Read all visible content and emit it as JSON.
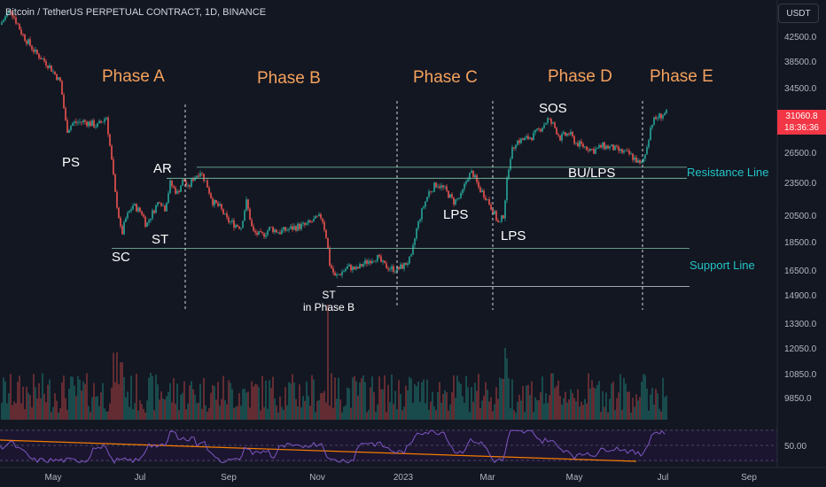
{
  "header": {
    "title": "Bitcoin / TetherUS PERPETUAL CONTRACT, 1D, BINANCE",
    "currency": "USDT"
  },
  "price_tag": {
    "price": "31060.8",
    "countdown": "18:36:36"
  },
  "colors": {
    "up": "#26a69a",
    "down": "#ef5350",
    "phase": "#f5a25d",
    "level_line": "#7fc8a9",
    "rsi": "#7e57c2",
    "trend": "#f57c00"
  },
  "phases": [
    "Phase A",
    "Phase B",
    "Phase C",
    "Phase D",
    "Phase E"
  ],
  "events": {
    "ps": "PS",
    "sc": "SC",
    "ar": "AR",
    "st_a": "ST",
    "st_b": "ST",
    "st_b_sub": "in Phase B",
    "lps_c1": "LPS",
    "lps_c2": "LPS",
    "sos": "SOS",
    "bu_lps": "BU/LPS"
  },
  "levels": {
    "resistance": "Resistance Line",
    "support": "Support Line"
  },
  "chart_data": {
    "type": "candlestick",
    "symbol": "BTCUSDT.P",
    "timeframe": "1D",
    "y_ticks": [
      42500,
      38500,
      34500,
      30500,
      26500,
      23500,
      20500,
      18500,
      16500,
      14900,
      13300,
      12050,
      10850,
      9850
    ],
    "x_ticks": [
      "May",
      "Jul",
      "Sep",
      "Nov",
      "2023",
      "Mar",
      "May",
      "Jul",
      "Sep"
    ],
    "close_path": [
      [
        0,
        44500
      ],
      [
        12,
        47000
      ],
      [
        25,
        43000
      ],
      [
        40,
        40000
      ],
      [
        55,
        38000
      ],
      [
        68,
        35500
      ],
      [
        75,
        29000
      ],
      [
        82,
        29800
      ],
      [
        95,
        30000
      ],
      [
        110,
        29500
      ],
      [
        120,
        30500
      ],
      [
        125,
        26500
      ],
      [
        130,
        22500
      ],
      [
        137,
        19000
      ],
      [
        142,
        20300
      ],
      [
        150,
        21500
      ],
      [
        160,
        20800
      ],
      [
        165,
        19800
      ],
      [
        172,
        20800
      ],
      [
        180,
        22000
      ],
      [
        186,
        21200
      ],
      [
        192,
        23500
      ],
      [
        200,
        22600
      ],
      [
        207,
        23900
      ],
      [
        212,
        23000
      ],
      [
        218,
        24000
      ],
      [
        226,
        24700
      ],
      [
        233,
        23500
      ],
      [
        240,
        21800
      ],
      [
        248,
        21300
      ],
      [
        256,
        20200
      ],
      [
        264,
        19900
      ],
      [
        272,
        19700
      ],
      [
        278,
        21800
      ],
      [
        285,
        19300
      ],
      [
        295,
        19000
      ],
      [
        305,
        19600
      ],
      [
        315,
        19300
      ],
      [
        325,
        19500
      ],
      [
        335,
        19700
      ],
      [
        345,
        19800
      ],
      [
        355,
        20200
      ],
      [
        363,
        20500
      ],
      [
        368,
        19000
      ],
      [
        372,
        17000
      ],
      [
        378,
        16100
      ],
      [
        385,
        16400
      ],
      [
        393,
        16800
      ],
      [
        402,
        16600
      ],
      [
        410,
        17000
      ],
      [
        418,
        17300
      ],
      [
        425,
        17500
      ],
      [
        433,
        16900
      ],
      [
        440,
        16700
      ],
      [
        448,
        16600
      ],
      [
        456,
        16900
      ],
      [
        464,
        17400
      ],
      [
        470,
        19500
      ],
      [
        477,
        21200
      ],
      [
        484,
        22700
      ],
      [
        493,
        23500
      ],
      [
        502,
        22900
      ],
      [
        512,
        21800
      ],
      [
        520,
        22300
      ],
      [
        528,
        24200
      ],
      [
        533,
        24600
      ],
      [
        540,
        23100
      ],
      [
        548,
        22300
      ],
      [
        556,
        21000
      ],
      [
        563,
        19800
      ],
      [
        568,
        20600
      ],
      [
        575,
        26000
      ],
      [
        582,
        27800
      ],
      [
        592,
        28000
      ],
      [
        603,
        28500
      ],
      [
        612,
        29500
      ],
      [
        618,
        30200
      ],
      [
        625,
        29500
      ],
      [
        632,
        28200
      ],
      [
        642,
        28700
      ],
      [
        650,
        27600
      ],
      [
        660,
        27200
      ],
      [
        670,
        26800
      ],
      [
        680,
        27300
      ],
      [
        690,
        27100
      ],
      [
        700,
        26700
      ],
      [
        710,
        26400
      ],
      [
        718,
        25800
      ],
      [
        723,
        25200
      ],
      [
        728,
        26400
      ],
      [
        735,
        29800
      ],
      [
        742,
        30500
      ],
      [
        752,
        31060
      ]
    ],
    "annotations": [
      {
        "label": "PS",
        "date_hint": "May 2022"
      },
      {
        "label": "SC",
        "date_hint": "Jun 2022"
      },
      {
        "label": "AR",
        "date_hint": "Aug 2022"
      },
      {
        "label": "ST",
        "date_hint": "Jul 2022"
      },
      {
        "label": "ST in Phase B",
        "date_hint": "Nov 2022"
      },
      {
        "label": "LPS",
        "date_hint": "Feb 2023"
      },
      {
        "label": "LPS",
        "date_hint": "Mar 2023"
      },
      {
        "label": "SOS",
        "date_hint": "Apr 2023"
      },
      {
        "label": "BU/LPS",
        "date_hint": "Jun 2023"
      }
    ],
    "horizontal_levels": [
      25100,
      24000,
      18100,
      15500
    ],
    "rsi_reference": "50.00"
  }
}
